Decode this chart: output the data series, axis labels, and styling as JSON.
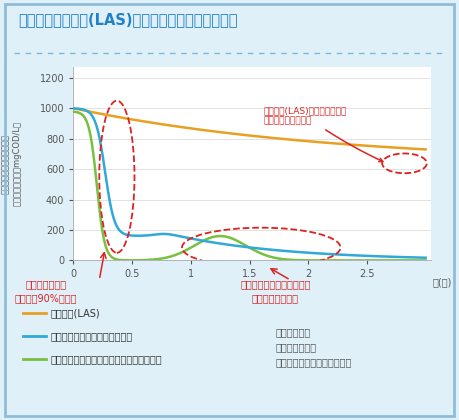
{
  "title": "石けんと合成洗剤(LAS)が微生物に分解されるまで",
  "ylabel_lines": [
    "微",
    "生",
    "物",
    "に",
    "よ",
    "る",
    "分",
    "解",
    "の",
    "進",
    "行",
    "度",
    "（",
    "残",
    "存",
    "有",
    "機",
    "物",
    "濃",
    "度",
    "m",
    "g",
    "C",
    "O",
    "D",
    "/",
    "L",
    "）"
  ],
  "ylabel": "微生物による分解の進行度\n（残存有機物濃度mgCOD/L）",
  "xlabel_unit": "３(日)",
  "xlim": [
    0,
    3.05
  ],
  "ylim": [
    0,
    1270
  ],
  "yticks": [
    0,
    200,
    400,
    600,
    800,
    1000,
    1200
  ],
  "xticks": [
    0,
    0.5,
    1,
    1.5,
    2,
    2.5
  ],
  "bg_color": "#dff0f8",
  "plot_bg": "#ffffff",
  "border_color": "#90bcd8",
  "title_color": "#2080c8",
  "dotted_line_color": "#80b8d8",
  "orange_color": "#e8a020",
  "blue_color": "#30a8d8",
  "green_color": "#78c040",
  "legend1": "合成洗剤(LAS)",
  "legend2": "シャボン玉スノール液体タイプ",
  "legend3": "粉石けんスノール・シャボン玉浴用石けん",
  "annotation1": "合成洗剤(LAS)は３日経過後も\nあまり分解されない",
  "annotation2": "石けんはわずか\n半日で約90%が分解",
  "annotation3": "無害な石けんカスとなり、\n次第に分解される",
  "institution_label": "〈実験機関〉\n北九州市立大学\n環境・消防技術開発センター",
  "red_color": "#dd2222",
  "gray_color": "#888888"
}
